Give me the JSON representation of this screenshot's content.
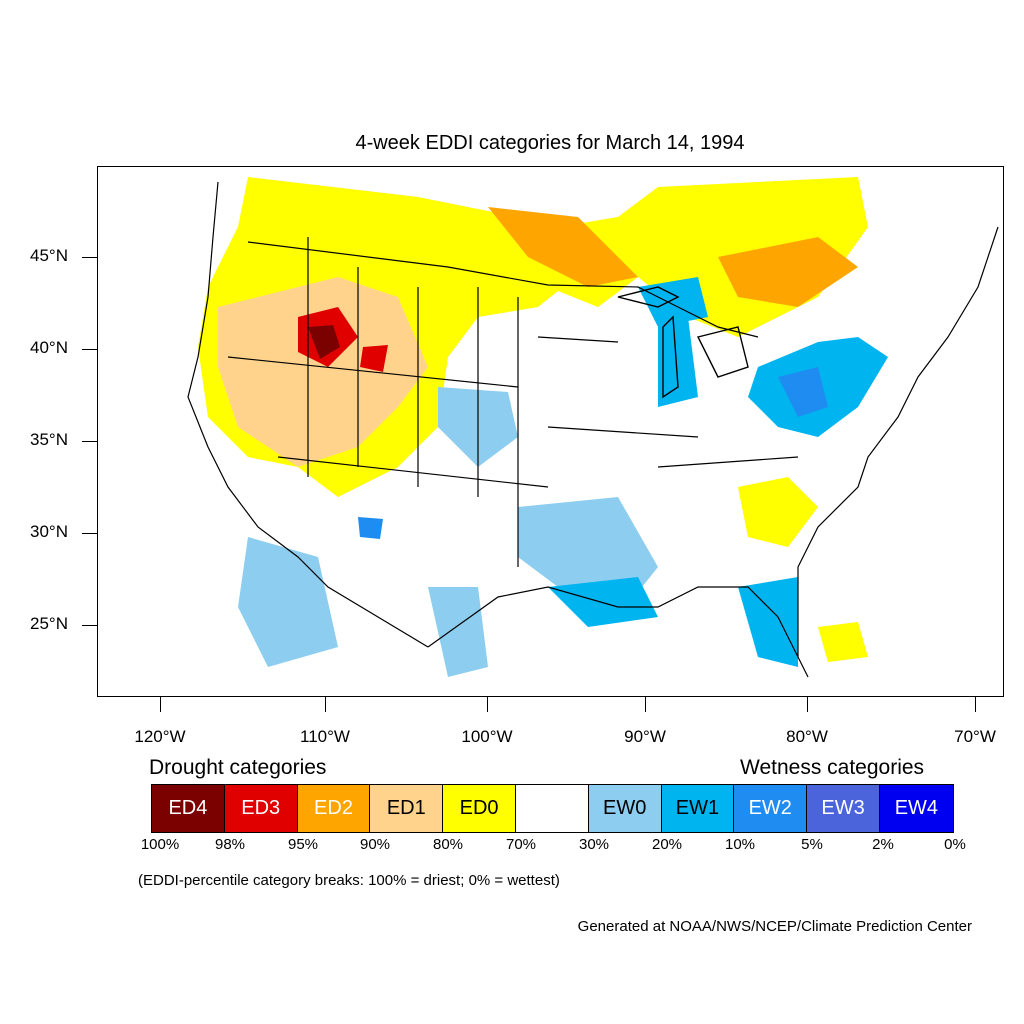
{
  "title": "4-week EDDI categories for March 14, 1994",
  "axes": {
    "lat_labels": [
      "45°N",
      "40°N",
      "35°N",
      "30°N",
      "25°N"
    ],
    "lon_labels": [
      "120°W",
      "110°W",
      "100°W",
      "90°W",
      "80°W",
      "70°W"
    ]
  },
  "legend": {
    "drought_heading": "Drought categories",
    "wetness_heading": "Wetness categories",
    "categories": [
      {
        "label": "ED4",
        "color": "#7b0000",
        "text_color": "#ffffff"
      },
      {
        "label": "ED3",
        "color": "#e00000",
        "text_color": "#ffffff"
      },
      {
        "label": "ED2",
        "color": "#ffa500",
        "text_color": "#ffffff"
      },
      {
        "label": "ED1",
        "color": "#ffd38c",
        "text_color": "#000000"
      },
      {
        "label": "ED0",
        "color": "#ffff00",
        "text_color": "#000000"
      },
      {
        "label": "",
        "color": "#ffffff",
        "text_color": "#000000"
      },
      {
        "label": "EW0",
        "color": "#8ccdf0",
        "text_color": "#000000"
      },
      {
        "label": "EW1",
        "color": "#00b4f0",
        "text_color": "#000000"
      },
      {
        "label": "EW2",
        "color": "#1e8cf0",
        "text_color": "#ffffff"
      },
      {
        "label": "EW3",
        "color": "#4b64dc",
        "text_color": "#ffffff"
      },
      {
        "label": "EW4",
        "color": "#0000f0",
        "text_color": "#ffffff"
      }
    ],
    "breaks": [
      "100%",
      "98%",
      "95%",
      "90%",
      "80%",
      "70%",
      "30%",
      "20%",
      "10%",
      "5%",
      "2%",
      "0%"
    ]
  },
  "note": "(EDDI-percentile category breaks: 100% = driest; 0% = wettest)",
  "credit": "Generated at NOAA/NWS/NCEP/Climate Prediction Center"
}
